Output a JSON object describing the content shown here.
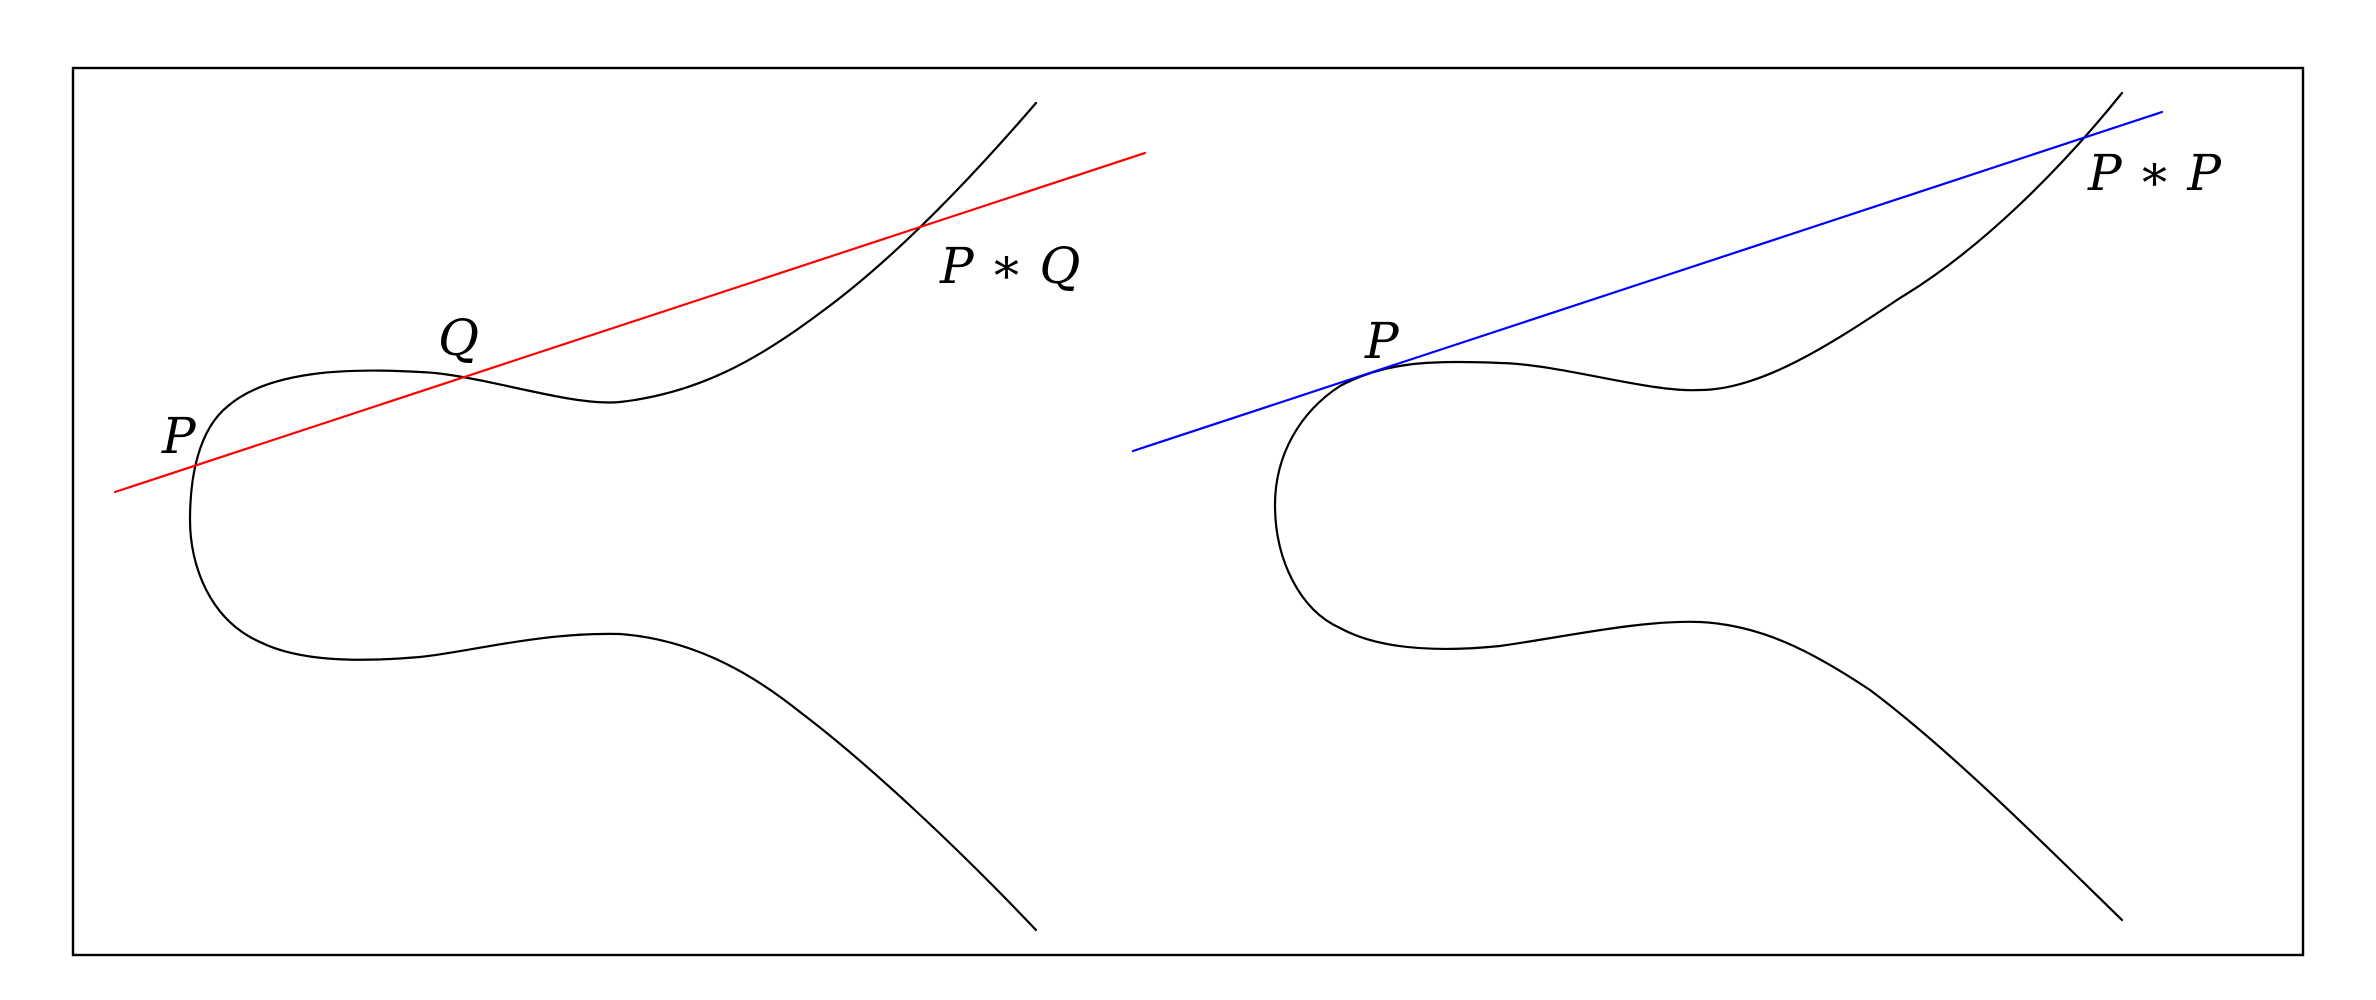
{
  "labels": {
    "left_p": "P",
    "left_q": "Q",
    "left_pq": "P ∗ Q",
    "right_p": "P",
    "right_pp": "P ∗ P"
  },
  "colors": {
    "secant_line": "#ff0000",
    "tangent_line": "#0000ff",
    "curve": "#000000",
    "frame": "#000000"
  }
}
